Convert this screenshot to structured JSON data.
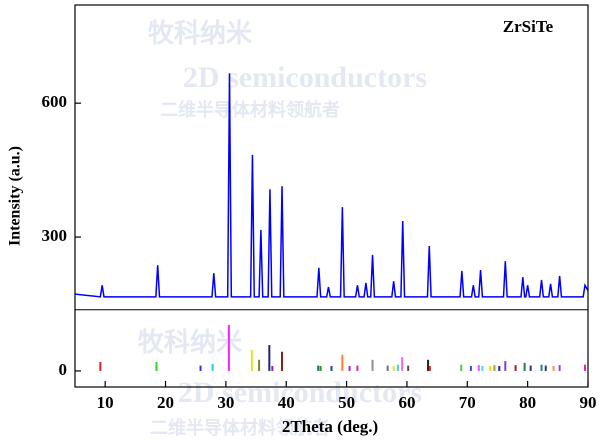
{
  "chart_data": {
    "type": "line",
    "annotation": "ZrSiTe",
    "xlabel": "2Theta (deg.)",
    "ylabel": "Intensity (a.u.)",
    "watermark": [
      "牧科纳米",
      "2D semiconductors",
      "二维半导体材料领航者"
    ],
    "xlim": [
      5,
      90
    ],
    "ylim": [
      -36,
      820
    ],
    "xticks": [
      10,
      20,
      30,
      40,
      50,
      60,
      70,
      80,
      90
    ],
    "yticks": [
      0,
      300,
      600
    ],
    "divider": 137,
    "series": [
      {
        "color": "#0000ff",
        "x": [
          5,
          9.2,
          9.5,
          9.8,
          18.4,
          18.7,
          19.0,
          27.7,
          28.0,
          28.3,
          30.3,
          30.6,
          30.9,
          34.1,
          34.4,
          34.7,
          35.5,
          35.8,
          36.1,
          37.0,
          37.3,
          37.6,
          39.0,
          39.3,
          39.6,
          45.1,
          45.4,
          45.7,
          46.7,
          47.0,
          47.3,
          49.0,
          49.3,
          49.6,
          51.5,
          51.8,
          52.1,
          52.9,
          53.2,
          53.5,
          54.0,
          54.3,
          54.6,
          57.5,
          57.8,
          58.1,
          59.0,
          59.3,
          59.6,
          63.4,
          63.7,
          64.0,
          68.8,
          69.1,
          69.4,
          70.7,
          71.0,
          71.3,
          71.9,
          72.2,
          72.5,
          76.0,
          76.3,
          76.6,
          78.9,
          79.2,
          79.5,
          79.7,
          80.0,
          80.3,
          82.0,
          82.3,
          82.6,
          83.5,
          83.8,
          84.1,
          85.0,
          85.3,
          85.6,
          89.2,
          89.5,
          90
        ],
        "values": [
          172,
          166,
          192,
          166,
          166,
          237,
          166,
          166,
          219,
          166,
          166,
          667,
          166,
          166,
          484,
          166,
          166,
          316,
          166,
          166,
          407,
          166,
          166,
          414,
          166,
          166,
          231,
          166,
          166,
          188,
          166,
          166,
          367,
          166,
          166,
          192,
          166,
          166,
          197,
          166,
          166,
          260,
          166,
          166,
          201,
          166,
          166,
          336,
          166,
          166,
          280,
          166,
          166,
          224,
          166,
          166,
          192,
          166,
          166,
          226,
          166,
          166,
          246,
          166,
          166,
          210,
          166,
          166,
          192,
          166,
          166,
          204,
          166,
          166,
          195,
          166,
          166,
          213,
          166,
          166,
          192,
          180
        ]
      }
    ],
    "reference": {
      "x": [
        9.2,
        18.5,
        25.8,
        27.8,
        30.5,
        34.3,
        35.5,
        37.2,
        37.7,
        39.3,
        45.3,
        45.7,
        47.5,
        49.3,
        50.5,
        51.8,
        54.3,
        56.8,
        57.8,
        58.5,
        59.2,
        60.2,
        63.5,
        63.8,
        69.0,
        70.6,
        71.9,
        72.5,
        73.8,
        74.5,
        75.3,
        76.3,
        78.0,
        79.5,
        80.5,
        82.3,
        83.0,
        84.3,
        85.3,
        89.5
      ],
      "values": [
        20,
        20,
        12,
        16,
        103,
        47,
        25,
        58,
        11,
        43,
        12,
        11,
        11,
        36,
        11,
        12,
        25,
        12,
        11,
        14,
        31,
        12,
        25,
        11,
        14,
        11,
        13,
        11,
        11,
        13,
        11,
        22,
        13,
        18,
        12,
        14,
        12,
        11,
        13,
        14
      ],
      "colors": [
        "#e0202a",
        "#2bd32b",
        "#3030e0",
        "#20d0e0",
        "#ff20ff",
        "#e8e020",
        "#808020",
        "#202080",
        "#8020c0",
        "#802020",
        "#207070",
        "#20a020",
        "#2040a0",
        "#ff8020",
        "#9030d0",
        "#e020a0",
        "#909090",
        "#707070",
        "#e0e040",
        "#40d0d0",
        "#ff60ff",
        "#505050",
        "#202020",
        "#e02020",
        "#40d040",
        "#4040ff",
        "#ff40ff",
        "#40e0e0",
        "#f0e000",
        "#a0a040",
        "#2020a0",
        "#8040c0",
        "#a02020",
        "#208040",
        "#303080",
        "#208080",
        "#204060",
        "#ff9040",
        "#a040d0",
        "#e020c0"
      ]
    }
  }
}
